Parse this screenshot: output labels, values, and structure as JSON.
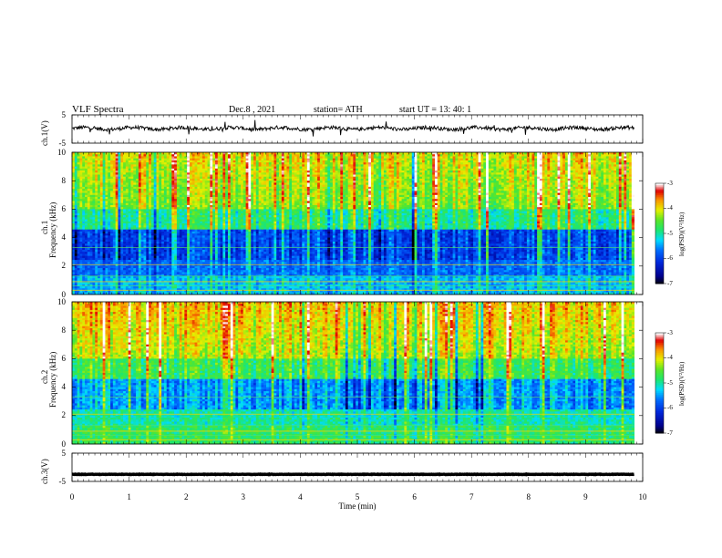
{
  "header": {
    "title": "VLF  Spectra",
    "date": "Dec.8  , 2021",
    "station": "station= ATH",
    "start": "start  UT  =    13: 40: 1"
  },
  "colors": {
    "deep_blue": "#0018b4",
    "blue": "#0060ff",
    "cyan": "#00e0ff",
    "green": "#22e060",
    "yellow": "#f0f000",
    "red": "#e00000",
    "black": "#000000"
  },
  "chart_data": [
    {
      "type": "line",
      "panel": "ch1-voltage",
      "ylabel": "ch.1(V)",
      "ylim": [
        -5,
        5
      ],
      "y_ticks": [
        "5",
        "-5"
      ],
      "xlim": [
        0,
        10
      ],
      "baseline_v": 0.2,
      "grid": false
    },
    {
      "type": "heatmap",
      "panel": "ch1-spectrogram",
      "ylabel_channel": "ch.1",
      "ylabel": "Frequency  (kHz)",
      "ylim": [
        0,
        10
      ],
      "y_ticks": [
        "0",
        "2",
        "4",
        "6",
        "8",
        "10"
      ],
      "xlim": [
        0,
        10
      ],
      "colorbar": {
        "label": "log(PSD)(V²/Hz)",
        "ticks": [
          "-3",
          "-4",
          "-5",
          "-6",
          "-7"
        ],
        "range": [
          -7,
          -3
        ]
      }
    },
    {
      "type": "heatmap",
      "panel": "ch2-spectrogram",
      "ylabel_channel": "ch.2",
      "ylabel": "Frequency  (kHz)",
      "ylim": [
        0,
        10
      ],
      "y_ticks": [
        "0",
        "2",
        "4",
        "6",
        "8",
        "10"
      ],
      "xlim": [
        0,
        10
      ],
      "colorbar": {
        "label": "log(PSD)(V²/Hz)",
        "ticks": [
          "-3",
          "-4",
          "-5",
          "-6",
          "-7"
        ],
        "range": [
          -7,
          -3
        ]
      }
    },
    {
      "type": "line",
      "panel": "ch3-voltage",
      "ylabel": "ch.3(V)",
      "ylim": [
        -5,
        5
      ],
      "y_ticks": [
        "5",
        "-5"
      ],
      "xlim": [
        0,
        10
      ],
      "baseline_v": -2.5,
      "grid": false
    }
  ],
  "xaxis": {
    "label": "Time  (min)",
    "ticks": [
      "0",
      "1",
      "2",
      "3",
      "4",
      "5",
      "6",
      "7",
      "8",
      "9",
      "10"
    ],
    "data_end_min": 9.85
  }
}
